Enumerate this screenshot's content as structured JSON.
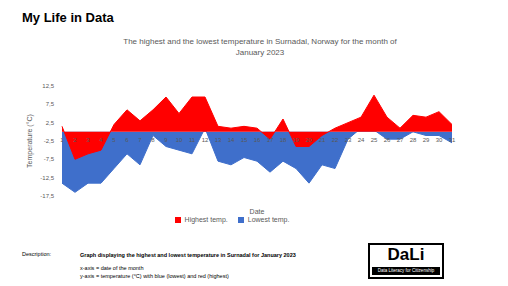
{
  "header": {
    "title": "My Life in Data"
  },
  "chart_data": {
    "type": "area",
    "title": "The highest and the lowest temperature in Surnadal, Norway for the month of January 2023",
    "x_label": "Date",
    "y_label": "Temperature (°C)",
    "categories": [
      "1",
      "2",
      "3",
      "4",
      "5",
      "6",
      "7",
      "8",
      "9",
      "10",
      "11",
      "12",
      "13",
      "14",
      "15",
      "16",
      "17",
      "18",
      "19",
      "20",
      "21",
      "22",
      "23",
      "24",
      "25",
      "26",
      "27",
      "28",
      "29",
      "30",
      "31"
    ],
    "series": [
      {
        "name": "Lowest temp.",
        "color": "#3f6fcb",
        "values": [
          -14,
          -16.5,
          -14,
          -14,
          -10,
          -6,
          -9,
          -1,
          -4,
          -5,
          -6,
          1,
          -8,
          -9,
          -7,
          -8,
          -11,
          -8,
          -10,
          -14,
          -9,
          -10,
          -2,
          1,
          0.5,
          -2,
          -2,
          0,
          -1,
          -1,
          -3
        ]
      },
      {
        "name": "Highest temp.",
        "color": "#ff0000",
        "values": [
          1.5,
          -7.5,
          -6,
          -5,
          2,
          6,
          3,
          6,
          9.5,
          5,
          9.5,
          9.5,
          1.5,
          1,
          1.5,
          1,
          -2,
          3.5,
          -4,
          -4,
          -1,
          1,
          2.5,
          4,
          10,
          4,
          1,
          4.5,
          4,
          5.5,
          2
        ]
      }
    ],
    "ylim": [
      -17.5,
      12.5
    ],
    "yticks": [
      {
        "value": -17.5,
        "label": "-17,5"
      },
      {
        "value": -12.5,
        "label": "-12,5"
      },
      {
        "value": -7.5,
        "label": "-7,5"
      },
      {
        "value": -2.5,
        "label": "-2,5"
      },
      {
        "value": 2.5,
        "label": "2,5"
      },
      {
        "value": 7.5,
        "label": "7,5"
      },
      {
        "value": 12.5,
        "label": "12,5"
      }
    ],
    "grid": false,
    "legend": "bottom"
  },
  "description": {
    "label": "Description:",
    "lines": [
      "Graph displaying the highest and lowest temperature in Surnadal for January 2023",
      "x-axis = date of the month",
      "y-axis = temperature (°C) with blue (lowest) and red (highest)"
    ]
  },
  "logo": {
    "text": "DaLi",
    "subtitle": "Data Literacy for Citizenship"
  }
}
